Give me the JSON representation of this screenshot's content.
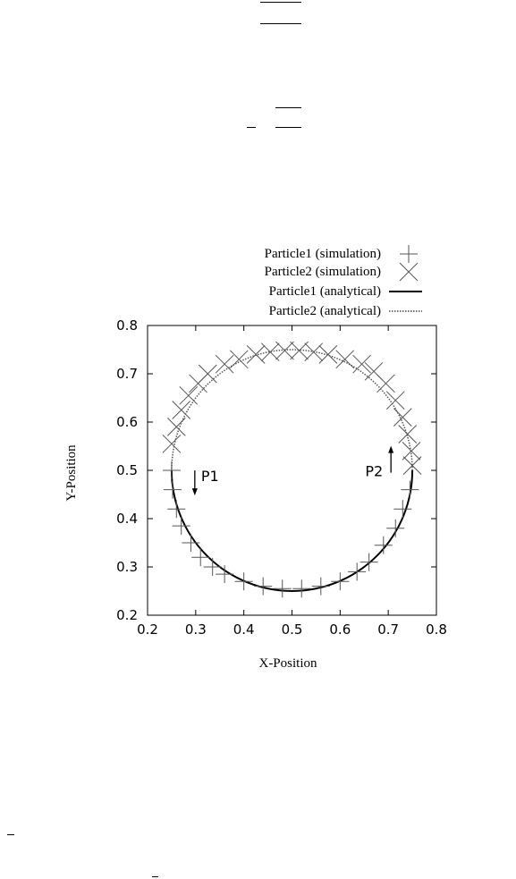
{
  "chart_data": {
    "type": "line",
    "title": "",
    "xlabel": "X-Position",
    "ylabel": "Y-Position",
    "xlim": [
      0.2,
      0.8
    ],
    "ylim": [
      0.2,
      0.8
    ],
    "xticks": [
      "0.2",
      "0.3",
      "0.4",
      "0.5",
      "0.6",
      "0.7",
      "0.8"
    ],
    "yticks": [
      "0.2",
      "0.3",
      "0.4",
      "0.5",
      "0.6",
      "0.7",
      "0.8"
    ],
    "grid": false,
    "legend_position": "top-right, above plot",
    "legend": [
      {
        "label": "Particle1 (simulation)",
        "marker": "plus"
      },
      {
        "label": "Particle2 (simulation)",
        "marker": "cross"
      },
      {
        "label": "Particle1 (analytical)",
        "line": "solid"
      },
      {
        "label": "Particle2 (analytical)",
        "line": "dotted"
      }
    ],
    "series": [
      {
        "name": "Particle1 (simulation)",
        "marker": "plus",
        "points": [
          {
            "x": 0.25,
            "y": 0.5
          },
          {
            "x": 0.252,
            "y": 0.46
          },
          {
            "x": 0.26,
            "y": 0.42
          },
          {
            "x": 0.27,
            "y": 0.385
          },
          {
            "x": 0.29,
            "y": 0.35
          },
          {
            "x": 0.31,
            "y": 0.32
          },
          {
            "x": 0.335,
            "y": 0.3
          },
          {
            "x": 0.36,
            "y": 0.285
          },
          {
            "x": 0.4,
            "y": 0.27
          },
          {
            "x": 0.44,
            "y": 0.26
          },
          {
            "x": 0.48,
            "y": 0.255
          },
          {
            "x": 0.52,
            "y": 0.255
          },
          {
            "x": 0.56,
            "y": 0.26
          },
          {
            "x": 0.6,
            "y": 0.27
          },
          {
            "x": 0.635,
            "y": 0.29
          },
          {
            "x": 0.66,
            "y": 0.31
          },
          {
            "x": 0.69,
            "y": 0.345
          },
          {
            "x": 0.715,
            "y": 0.38
          },
          {
            "x": 0.73,
            "y": 0.42
          },
          {
            "x": 0.745,
            "y": 0.46
          }
        ]
      },
      {
        "name": "Particle2 (simulation)",
        "marker": "cross",
        "points": [
          {
            "x": 0.75,
            "y": 0.51
          },
          {
            "x": 0.748,
            "y": 0.54
          },
          {
            "x": 0.74,
            "y": 0.575
          },
          {
            "x": 0.73,
            "y": 0.61
          },
          {
            "x": 0.715,
            "y": 0.645
          },
          {
            "x": 0.695,
            "y": 0.68
          },
          {
            "x": 0.67,
            "y": 0.705
          },
          {
            "x": 0.645,
            "y": 0.72
          },
          {
            "x": 0.61,
            "y": 0.73
          },
          {
            "x": 0.575,
            "y": 0.74
          },
          {
            "x": 0.545,
            "y": 0.745
          },
          {
            "x": 0.515,
            "y": 0.748
          },
          {
            "x": 0.485,
            "y": 0.748
          },
          {
            "x": 0.455,
            "y": 0.745
          },
          {
            "x": 0.425,
            "y": 0.74
          },
          {
            "x": 0.39,
            "y": 0.73
          },
          {
            "x": 0.36,
            "y": 0.72
          },
          {
            "x": 0.325,
            "y": 0.7
          },
          {
            "x": 0.305,
            "y": 0.68
          },
          {
            "x": 0.285,
            "y": 0.655
          },
          {
            "x": 0.27,
            "y": 0.625
          },
          {
            "x": 0.26,
            "y": 0.59
          },
          {
            "x": 0.25,
            "y": 0.555
          }
        ]
      },
      {
        "name": "Particle1 (analytical)",
        "line": "solid",
        "curve": "lower semicircle from (0.25, 0.50) through (0.50, 0.25) to (0.75, 0.50)"
      },
      {
        "name": "Particle2 (analytical)",
        "line": "dotted",
        "curve": "upper semicircle from (0.75, 0.50) through (0.50, 0.75) to (0.25, 0.50)"
      }
    ],
    "annotations": [
      {
        "text": "P1",
        "arrow": "down",
        "x": 0.3,
        "y": 0.485
      },
      {
        "text": "P2",
        "arrow": "up",
        "x": 0.7,
        "y": 0.51
      }
    ],
    "circle": {
      "center_x": 0.5,
      "center_y": 0.5,
      "radius": 0.25
    }
  }
}
